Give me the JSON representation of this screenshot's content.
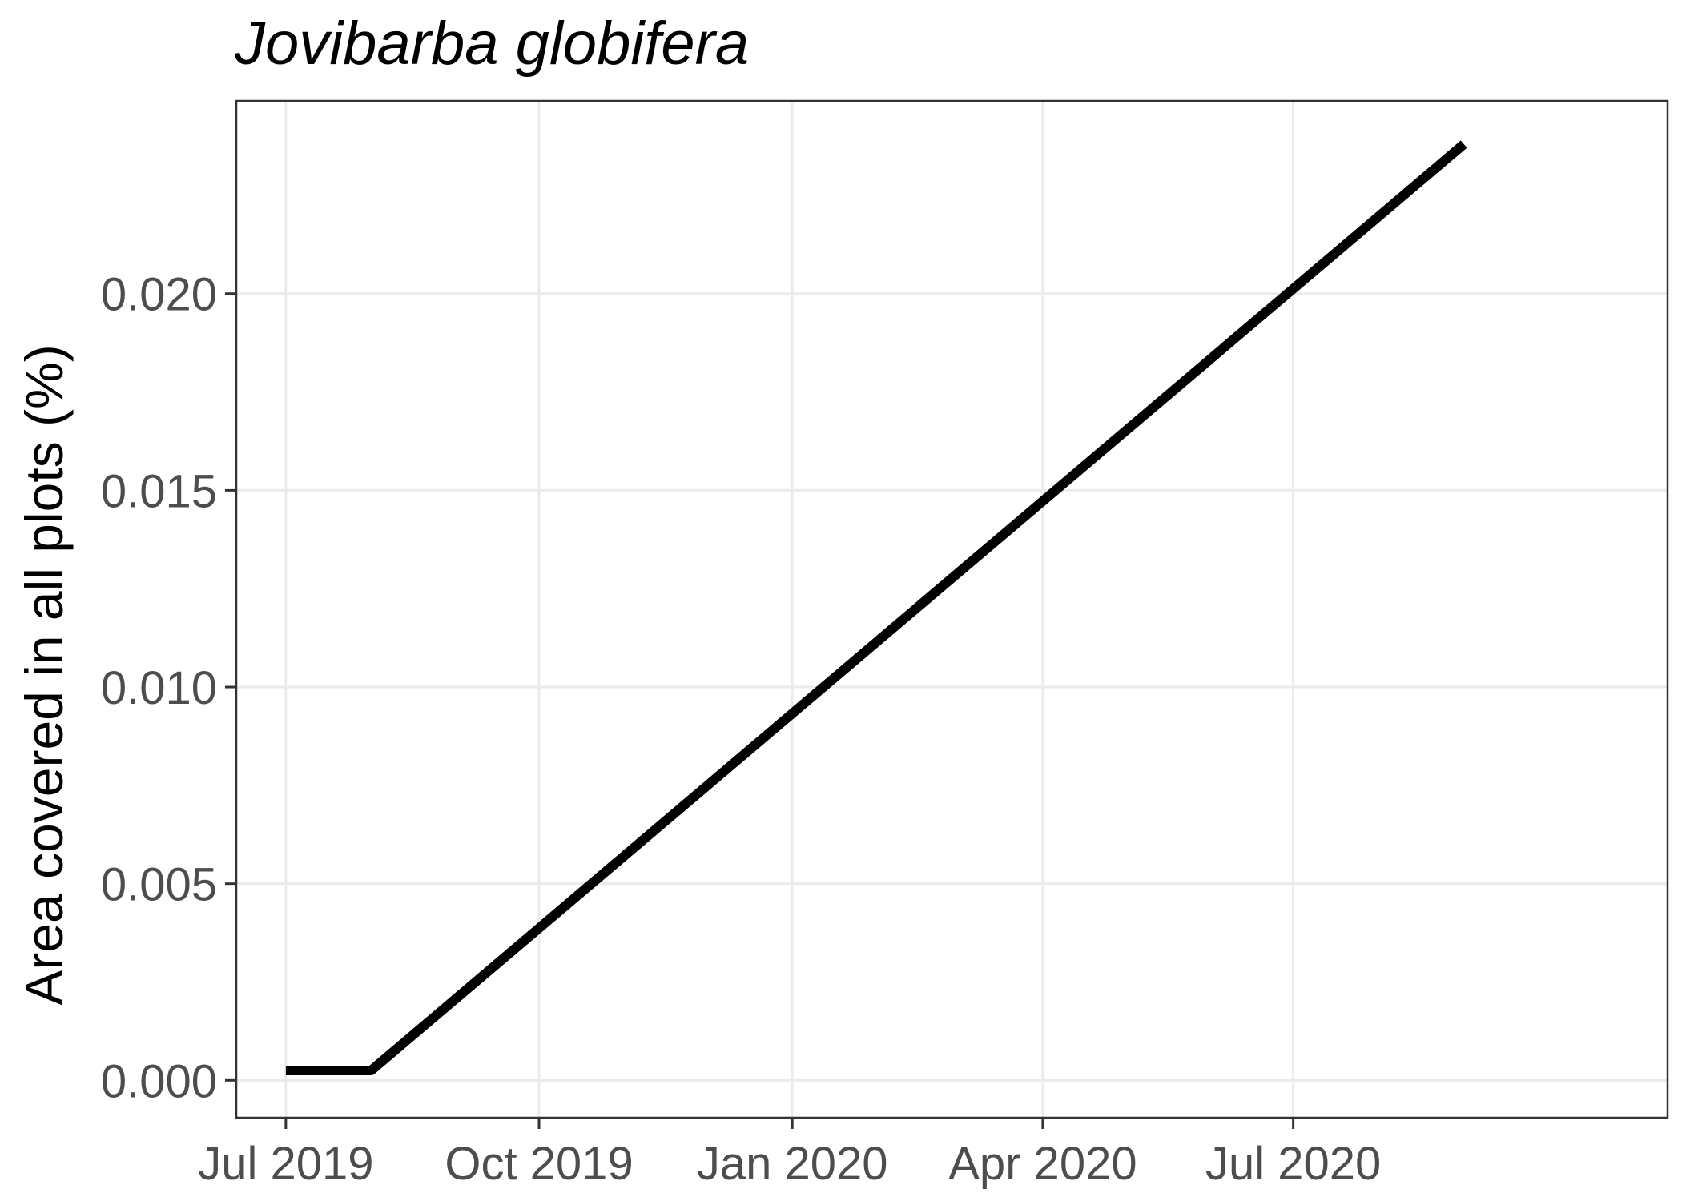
{
  "chart_data": {
    "type": "line",
    "title": "Jovibarba globifera",
    "xlabel": "",
    "ylabel": "Area covered in all plots (%)",
    "x_axis": {
      "type": "date",
      "range": [
        "2019-06-13",
        "2020-11-14"
      ],
      "ticks": [
        {
          "value": "2019-07-01",
          "label": "Jul 2019"
        },
        {
          "value": "2019-10-01",
          "label": "Oct 2019"
        },
        {
          "value": "2020-01-01",
          "label": "Jan 2020"
        },
        {
          "value": "2020-04-01",
          "label": "Apr 2020"
        },
        {
          "value": "2020-07-01",
          "label": "Jul 2020"
        }
      ]
    },
    "y_axis": {
      "range": [
        -0.00095,
        0.0249
      ],
      "ticks": [
        {
          "value": 0.0,
          "label": "0.000"
        },
        {
          "value": 0.005,
          "label": "0.005"
        },
        {
          "value": 0.01,
          "label": "0.010"
        },
        {
          "value": 0.015,
          "label": "0.015"
        },
        {
          "value": 0.02,
          "label": "0.020"
        }
      ]
    },
    "grid": true,
    "legend": "none",
    "series": [
      {
        "color": "#000000",
        "points": [
          {
            "x": "2019-07-01",
            "y": 0.00025
          },
          {
            "x": "2019-08-01",
            "y": 0.00025
          },
          {
            "x": "2020-09-01",
            "y": 0.0238
          }
        ]
      }
    ]
  }
}
